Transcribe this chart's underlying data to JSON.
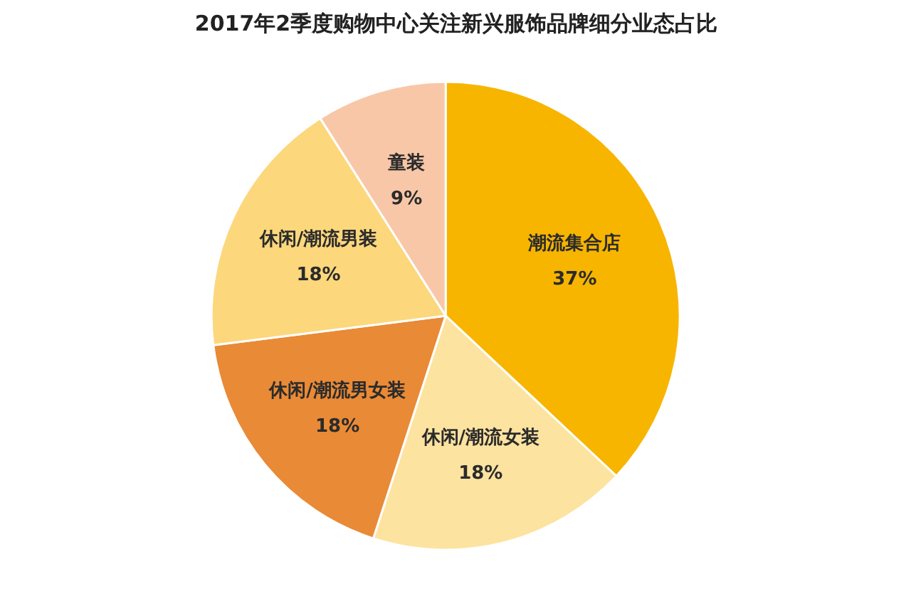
{
  "chart_data": {
    "type": "pie",
    "title": "2017年2季度购物中心关注新兴服饰品牌细分业态占比",
    "categories": [
      "潮流集合店",
      "休闲/潮流女装",
      "休闲/潮流男女装",
      "休闲/潮流男装",
      "童装"
    ],
    "values": [
      37,
      18,
      18,
      18,
      9
    ],
    "colors": [
      "#f7b500",
      "#fde3a0",
      "#e98a36",
      "#fcd77c",
      "#f8c7a8"
    ],
    "value_labels": [
      "37%",
      "18%",
      "18%",
      "18%",
      "9%"
    ]
  }
}
